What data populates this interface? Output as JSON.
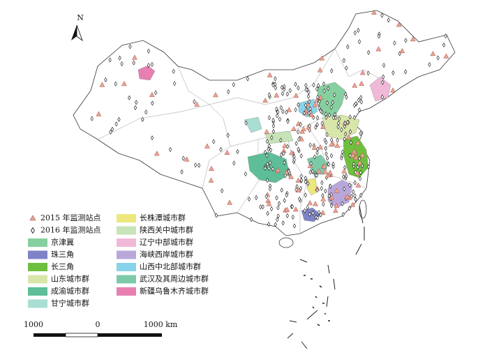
{
  "north_arrow": "N",
  "legend": {
    "items": [
      {
        "label": "2015 年监测站点",
        "color": "#e8a48e"
      },
      {
        "label": "2016 年监测站点",
        "color": "#ffffff"
      },
      {
        "label": "京津冀",
        "color": "#86cf9f"
      },
      {
        "label": "珠三角",
        "color": "#7f83c6"
      },
      {
        "label": "长三角",
        "color": "#6dbf3d"
      },
      {
        "label": "山东城市群",
        "color": "#d8e7a9"
      },
      {
        "label": "成渝城市群",
        "color": "#5dbe97"
      },
      {
        "label": "甘宁城市群",
        "color": "#a8ded4"
      },
      {
        "label": "长株潭城市群",
        "color": "#ede87c"
      },
      {
        "label": "陕西关中城市群",
        "color": "#c6e4b7"
      },
      {
        "label": "辽宁中部城市群",
        "color": "#f0b9d8"
      },
      {
        "label": "海峡西岸城市群",
        "color": "#b9a7da"
      },
      {
        "label": "山西中北部城市群",
        "color": "#87d4ea"
      },
      {
        "label": "武汉及其周边城市群",
        "color": "#7dcaa9"
      },
      {
        "label": "新疆乌鲁木齐城市群",
        "color": "#e780b1"
      }
    ]
  },
  "scale_bar": {
    "labels": [
      "1000",
      "0",
      "1000 km"
    ]
  }
}
